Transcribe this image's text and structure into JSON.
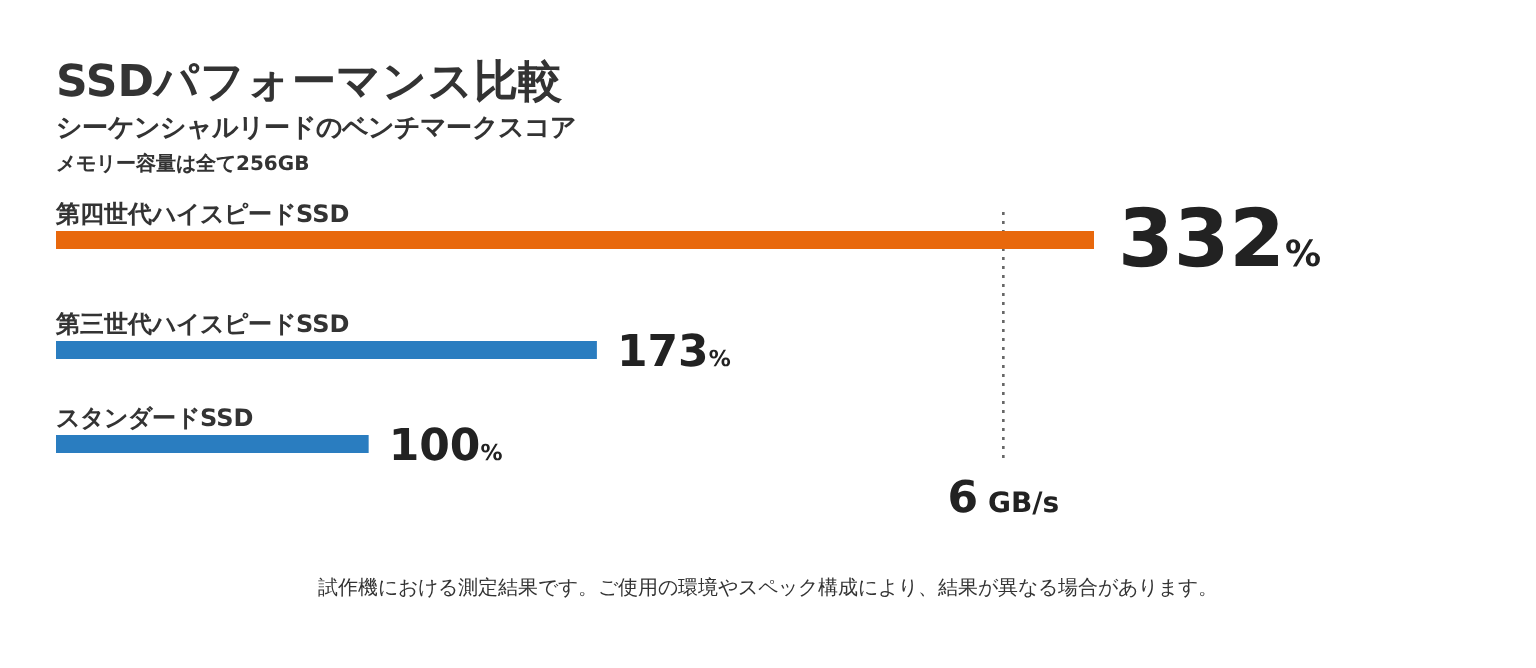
{
  "chart_data": {
    "type": "bar",
    "orientation": "horizontal",
    "title": "SSDパフォーマンス比較",
    "subtitle": "シーケンシャルリードのベンチマークスコア",
    "annotations": [
      "メモリー容量は全て256GB",
      "試作機における測定結果です。ご使用の環境やスペック構成により、結果が異なる場合があります。"
    ],
    "categories": [
      "第四世代ハイスピードSSD",
      "第三世代ハイスピードSSD",
      "スタンダードSSD"
    ],
    "values": [
      332,
      173,
      100
    ],
    "colors": [
      "#e8680c",
      "#2a7dc0",
      "#2a7dc0"
    ],
    "value_labels": [
      "332%",
      "173%",
      "100%"
    ],
    "ref_lines": [
      {
        "axis": "x",
        "value": 303,
        "label": "6 GB/s",
        "line_style": "dotted",
        "color": "#666666"
      }
    ]
  }
}
